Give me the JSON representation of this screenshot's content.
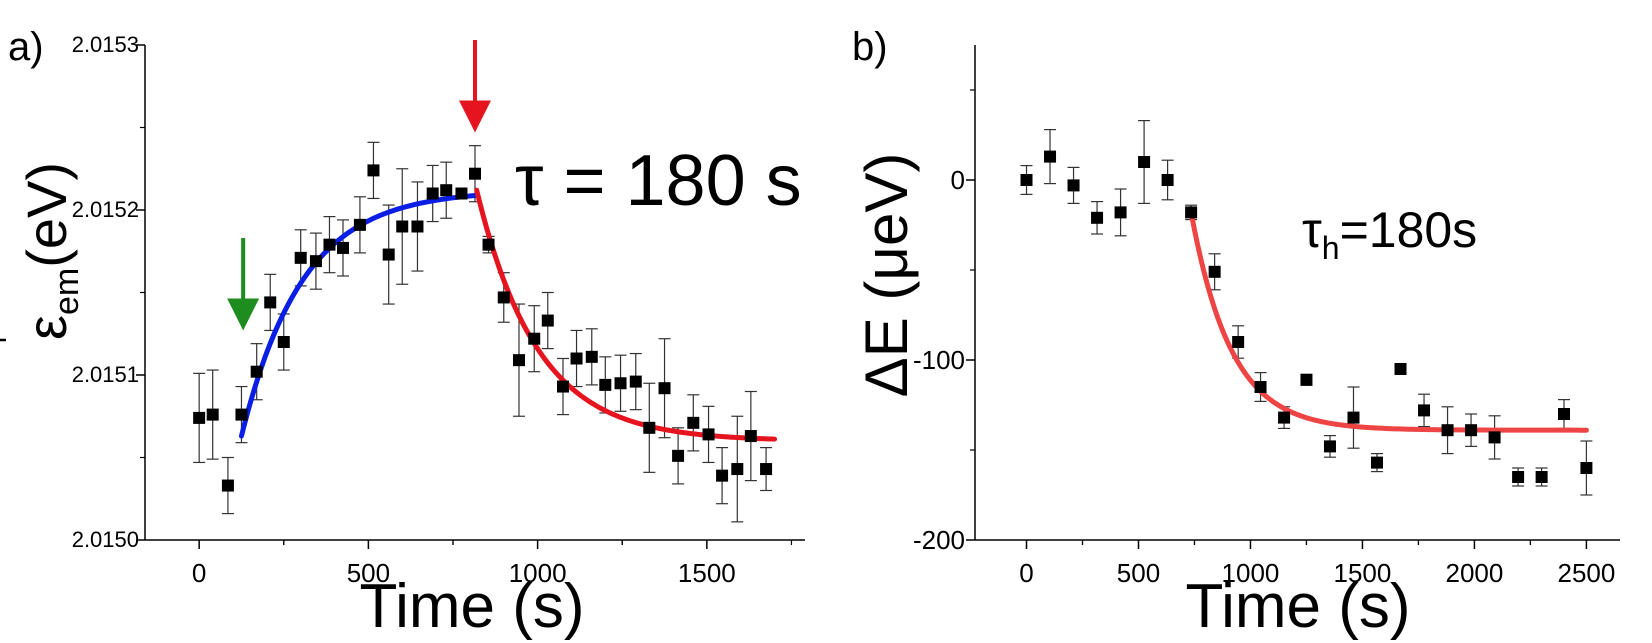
{
  "chart_data": [
    {
      "panel": "a)",
      "type": "scatter",
      "xlabel": "Time (s)",
      "ylabel_symbol": "ε",
      "ylabel_sub": "em",
      "ylabel_unit": "(eV)",
      "annotation": "τ = 180 s",
      "xlim": [
        -160,
        1790
      ],
      "ylim": [
        2.015,
        2.0153
      ],
      "x_ticks": [
        0,
        500,
        1000,
        1500
      ],
      "x_tick_labels": [
        "0",
        "500",
        "1000",
        "1500"
      ],
      "y_ticks": [
        2.015,
        2.0151,
        2.0152,
        2.0153
      ],
      "y_tick_labels": [
        "2.0150",
        "2.0151",
        "2.0152",
        "2.0153"
      ],
      "points": [
        {
          "x": 0,
          "y": 2.015074,
          "err": 2.7e-05
        },
        {
          "x": 40,
          "y": 2.015076,
          "err": 2.7e-05
        },
        {
          "x": 85,
          "y": 2.015033,
          "err": 1.7e-05
        },
        {
          "x": 125,
          "y": 2.015076,
          "err": 1.7e-05
        },
        {
          "x": 170,
          "y": 2.015102,
          "err": 1.7e-05
        },
        {
          "x": 210,
          "y": 2.015144,
          "err": 1.7e-05
        },
        {
          "x": 250,
          "y": 2.01512,
          "err": 1.7e-05
        },
        {
          "x": 300,
          "y": 2.015171,
          "err": 1.7e-05
        },
        {
          "x": 345,
          "y": 2.015169,
          "err": 1.7e-05
        },
        {
          "x": 385,
          "y": 2.015179,
          "err": 1.7e-05
        },
        {
          "x": 425,
          "y": 2.015177,
          "err": 1.7e-05
        },
        {
          "x": 475,
          "y": 2.015191,
          "err": 1.7e-05
        },
        {
          "x": 515,
          "y": 2.015224,
          "err": 1.7e-05
        },
        {
          "x": 560,
          "y": 2.015173,
          "err": 3e-05
        },
        {
          "x": 600,
          "y": 2.01519,
          "err": 3.5e-05
        },
        {
          "x": 645,
          "y": 2.01519,
          "err": 2.7e-05
        },
        {
          "x": 690,
          "y": 2.01521,
          "err": 1.7e-05
        },
        {
          "x": 730,
          "y": 2.015212,
          "err": 1.7e-05
        },
        {
          "x": 775,
          "y": 2.01521,
          "err": 2e-06
        },
        {
          "x": 815,
          "y": 2.015222,
          "err": 1.7e-05
        },
        {
          "x": 855,
          "y": 2.015179,
          "err": 5e-06
        },
        {
          "x": 900,
          "y": 2.015147,
          "err": 1.5e-05
        },
        {
          "x": 945,
          "y": 2.015109,
          "err": 3.4e-05
        },
        {
          "x": 990,
          "y": 2.015122,
          "err": 2e-05
        },
        {
          "x": 1030,
          "y": 2.015133,
          "err": 1.7e-05
        },
        {
          "x": 1075,
          "y": 2.015093,
          "err": 1.7e-05
        },
        {
          "x": 1115,
          "y": 2.01511,
          "err": 1.7e-05
        },
        {
          "x": 1160,
          "y": 2.015111,
          "err": 1.7e-05
        },
        {
          "x": 1200,
          "y": 2.015094,
          "err": 1.7e-05
        },
        {
          "x": 1245,
          "y": 2.015095,
          "err": 1.7e-05
        },
        {
          "x": 1290,
          "y": 2.015096,
          "err": 1.7e-05
        },
        {
          "x": 1330,
          "y": 2.015068,
          "err": 2.7e-05
        },
        {
          "x": 1375,
          "y": 2.015092,
          "err": 3e-05
        },
        {
          "x": 1415,
          "y": 2.015051,
          "err": 1.7e-05
        },
        {
          "x": 1460,
          "y": 2.015071,
          "err": 1.7e-05
        },
        {
          "x": 1505,
          "y": 2.015064,
          "err": 1.7e-05
        },
        {
          "x": 1545,
          "y": 2.015039,
          "err": 1.7e-05
        },
        {
          "x": 1590,
          "y": 2.015043,
          "err": 3.2e-05
        },
        {
          "x": 1630,
          "y": 2.015063,
          "err": 2.7e-05
        },
        {
          "x": 1675,
          "y": 2.015043,
          "err": 1.3e-05
        }
      ],
      "fits": [
        {
          "color": "#0a1ee6",
          "x_start": 125,
          "x_end": 820,
          "y0": 2.015063,
          "y_inf": 2.015212,
          "tau": 180,
          "t0": 125
        },
        {
          "color": "#e6141e",
          "x_start": 820,
          "x_end": 1700,
          "y0": 2.015212,
          "y_inf": 2.01506,
          "tau": 180,
          "t0": 820
        }
      ],
      "arrows": [
        {
          "color": "#1e8c1e",
          "x": 130,
          "y_from": 2.015183,
          "y_to": 2.015127
        },
        {
          "color": "#e6141e",
          "x": 815,
          "y_from": 2.015303,
          "y_to": 2.015247
        }
      ]
    },
    {
      "panel": "b)",
      "type": "scatter",
      "xlabel": "Time (s)",
      "ylabel": "ΔE (μeV)",
      "annotation_main": "τ",
      "annotation_sub": "h",
      "annotation_rest": "=180s",
      "xlim": [
        -230,
        2650
      ],
      "ylim": [
        -200,
        75
      ],
      "x_ticks": [
        0,
        500,
        1000,
        1500,
        2000,
        2500
      ],
      "x_tick_labels": [
        "0",
        "500",
        "1000",
        "1500",
        "2000",
        "2500"
      ],
      "y_ticks": [
        -200,
        -100,
        0
      ],
      "y_tick_labels": [
        "-200",
        "-100",
        "0"
      ],
      "points": [
        {
          "x": 0,
          "y": 0,
          "err": 8
        },
        {
          "x": 105,
          "y": 13,
          "err": 15
        },
        {
          "x": 210,
          "y": -3,
          "err": 10
        },
        {
          "x": 315,
          "y": -21,
          "err": 9
        },
        {
          "x": 420,
          "y": -18,
          "err": 13
        },
        {
          "x": 525,
          "y": 10,
          "err": 23
        },
        {
          "x": 630,
          "y": 0,
          "err": 11
        },
        {
          "x": 735,
          "y": -18,
          "err": 4
        },
        {
          "x": 840,
          "y": -51,
          "err": 10
        },
        {
          "x": 945,
          "y": -90,
          "err": 9
        },
        {
          "x": 1045,
          "y": -115,
          "err": 8
        },
        {
          "x": 1150,
          "y": -132,
          "err": 6
        },
        {
          "x": 1250,
          "y": -111,
          "err": 3
        },
        {
          "x": 1355,
          "y": -148,
          "err": 6
        },
        {
          "x": 1460,
          "y": -132,
          "err": 17
        },
        {
          "x": 1565,
          "y": -157,
          "err": 5
        },
        {
          "x": 1670,
          "y": -105,
          "err": 3
        },
        {
          "x": 1775,
          "y": -128,
          "err": 9
        },
        {
          "x": 1880,
          "y": -139,
          "err": 13
        },
        {
          "x": 1985,
          "y": -139,
          "err": 9
        },
        {
          "x": 2090,
          "y": -143,
          "err": 12
        },
        {
          "x": 2195,
          "y": -165,
          "err": 5
        },
        {
          "x": 2300,
          "y": -165,
          "err": 5
        },
        {
          "x": 2400,
          "y": -130,
          "err": 8
        },
        {
          "x": 2500,
          "y": -160,
          "err": 15
        }
      ],
      "fits": [
        {
          "color": "#ee4444",
          "x_start": 735,
          "x_end": 2500,
          "y0": -18,
          "y_inf": -139,
          "tau": 180,
          "t0": 735
        }
      ]
    }
  ]
}
